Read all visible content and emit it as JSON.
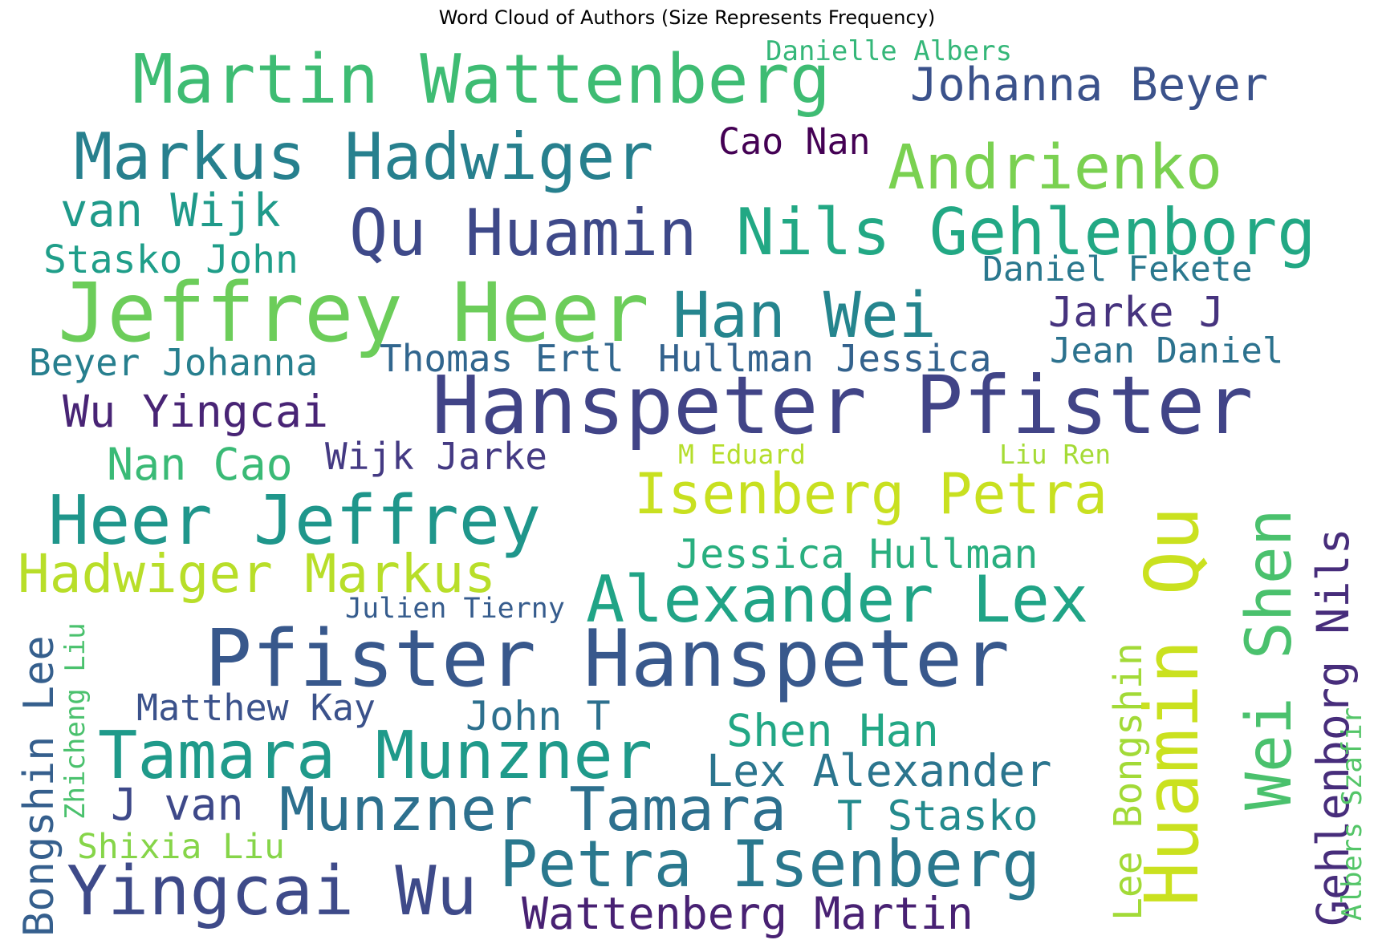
{
  "title": "Word Cloud of Authors (Size Represents Frequency)",
  "words": [
    {
      "text": "Martin Wattenberg",
      "color": "#3ebc73",
      "rotate": false
    },
    {
      "text": "Danielle Albers",
      "color": "#35b779",
      "rotate": false
    },
    {
      "text": "Johanna Beyer",
      "color": "#3b528b",
      "rotate": false
    },
    {
      "text": "Markus Hadwiger",
      "color": "#27808e",
      "rotate": false
    },
    {
      "text": "Cao Nan",
      "color": "#440154",
      "rotate": false
    },
    {
      "text": "Andrienko",
      "color": "#7ad151",
      "rotate": false
    },
    {
      "text": "van Wijk",
      "color": "#1f9a8a",
      "rotate": false
    },
    {
      "text": "Qu Huamin",
      "color": "#3e4989",
      "rotate": false
    },
    {
      "text": "Nils Gehlenborg",
      "color": "#22a884",
      "rotate": false
    },
    {
      "text": "Stasko John",
      "color": "#1f9e89",
      "rotate": false
    },
    {
      "text": "Daniel Fekete",
      "color": "#2a788e",
      "rotate": false
    },
    {
      "text": "Jeffrey Heer",
      "color": "#6ccd5a",
      "rotate": false
    },
    {
      "text": "Han Wei",
      "color": "#25858e",
      "rotate": false
    },
    {
      "text": "Jarke J",
      "color": "#46337e",
      "rotate": false
    },
    {
      "text": "Beyer Johanna",
      "color": "#277f8e",
      "rotate": false
    },
    {
      "text": "Thomas Ertl",
      "color": "#31668e",
      "rotate": false
    },
    {
      "text": "Hullman Jessica",
      "color": "#33628d",
      "rotate": false
    },
    {
      "text": "Jean Daniel",
      "color": "#2c728e",
      "rotate": false
    },
    {
      "text": "Hanspeter Pfister",
      "color": "#414487",
      "rotate": false
    },
    {
      "text": "Wu Yingcai",
      "color": "#482475",
      "rotate": false
    },
    {
      "text": "Nan Cao",
      "color": "#3aba76",
      "rotate": false
    },
    {
      "text": "Wijk Jarke",
      "color": "#443a83",
      "rotate": false
    },
    {
      "text": "M Eduard",
      "color": "#b5de2b",
      "rotate": false
    },
    {
      "text": "Liu Ren",
      "color": "#a5db36",
      "rotate": false
    },
    {
      "text": "Isenberg Petra",
      "color": "#c8e020",
      "rotate": false
    },
    {
      "text": "Huamin Qu",
      "color": "#cae11f",
      "rotate": true
    },
    {
      "text": "Wei Shen",
      "color": "#4ac16d",
      "rotate": true
    },
    {
      "text": "Gehlenborg Nils",
      "color": "#472d7b",
      "rotate": true
    },
    {
      "text": "Heer Jeffrey",
      "color": "#1f968b",
      "rotate": false
    },
    {
      "text": "Jessica Hullman",
      "color": "#29af7f",
      "rotate": false
    },
    {
      "text": "Hadwiger Markus",
      "color": "#b8de29",
      "rotate": false
    },
    {
      "text": "Alexander Lex",
      "color": "#20a486",
      "rotate": false
    },
    {
      "text": "Julien Tierny",
      "color": "#365c8d",
      "rotate": false
    },
    {
      "text": "Bongshin Lee",
      "color": "#355f8d",
      "rotate": true
    },
    {
      "text": "Zhicheng Liu",
      "color": "#4ac16d",
      "rotate": true
    },
    {
      "text": "Pfister Hanspeter",
      "color": "#38588c",
      "rotate": false
    },
    {
      "text": "Lee Bongshin",
      "color": "#a2da37",
      "rotate": true
    },
    {
      "text": "Albers Szafir",
      "color": "#54c568",
      "rotate": true
    },
    {
      "text": "Matthew Kay",
      "color": "#3b528b",
      "rotate": false
    },
    {
      "text": "John T",
      "color": "#2d708e",
      "rotate": false
    },
    {
      "text": "Shen Han",
      "color": "#22a785",
      "rotate": false
    },
    {
      "text": "Tamara Munzner",
      "color": "#1f9a8a",
      "rotate": false
    },
    {
      "text": "Lex Alexander",
      "color": "#2b758e",
      "rotate": false
    },
    {
      "text": "J van",
      "color": "#3e4989",
      "rotate": false
    },
    {
      "text": "Munzner Tamara",
      "color": "#2d708e",
      "rotate": false
    },
    {
      "text": "T Stasko",
      "color": "#238a8d",
      "rotate": false
    },
    {
      "text": "Shixia Liu",
      "color": "#86d549",
      "rotate": false
    },
    {
      "text": "Yingcai Wu",
      "color": "#3e4a89",
      "rotate": false
    },
    {
      "text": "Petra Isenberg",
      "color": "#2a788e",
      "rotate": false
    },
    {
      "text": "Wattenberg Martin",
      "color": "#482173",
      "rotate": false
    }
  ]
}
